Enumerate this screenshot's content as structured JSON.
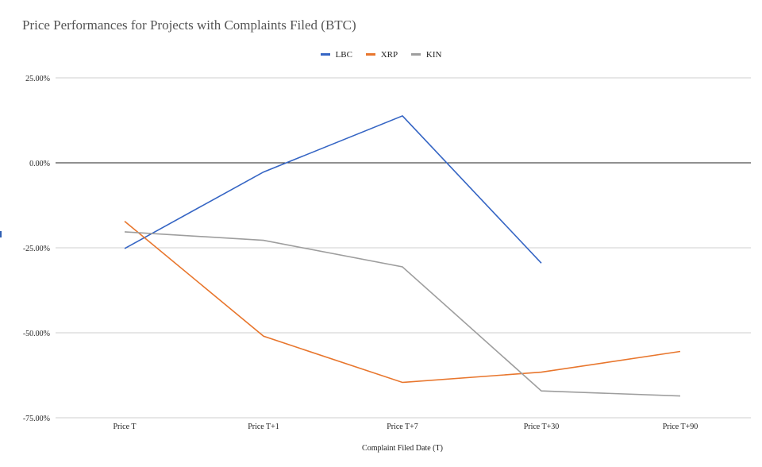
{
  "chart_data": {
    "type": "line",
    "title": "Price Performances for Projects with Complaints Filed (BTC)",
    "xlabel": "Complaint Filed Date (T)",
    "ylabel": "",
    "categories": [
      "Price T",
      "Price T+1",
      "Price T+7",
      "Price T+30",
      "Price T+90"
    ],
    "ylim": [
      -75,
      25
    ],
    "y_ticks": [
      25,
      0,
      -25,
      -50,
      -75
    ],
    "y_tick_labels": [
      "25.00%",
      "0.00%",
      "-25.00%",
      "-50.00%",
      "-75.00%"
    ],
    "grid": true,
    "legend_position": "top-center",
    "series": [
      {
        "name": "LBC",
        "color": "#3565c4",
        "values": [
          -25.2,
          -2.7,
          13.8,
          -29.5,
          null
        ]
      },
      {
        "name": "XRP",
        "color": "#e8762d",
        "values": [
          -17.2,
          -51.0,
          -64.6,
          -61.6,
          -55.5
        ]
      },
      {
        "name": "KIN",
        "color": "#9e9e9e",
        "values": [
          -20.3,
          -22.8,
          -30.6,
          -67.1,
          -68.6
        ]
      }
    ]
  }
}
